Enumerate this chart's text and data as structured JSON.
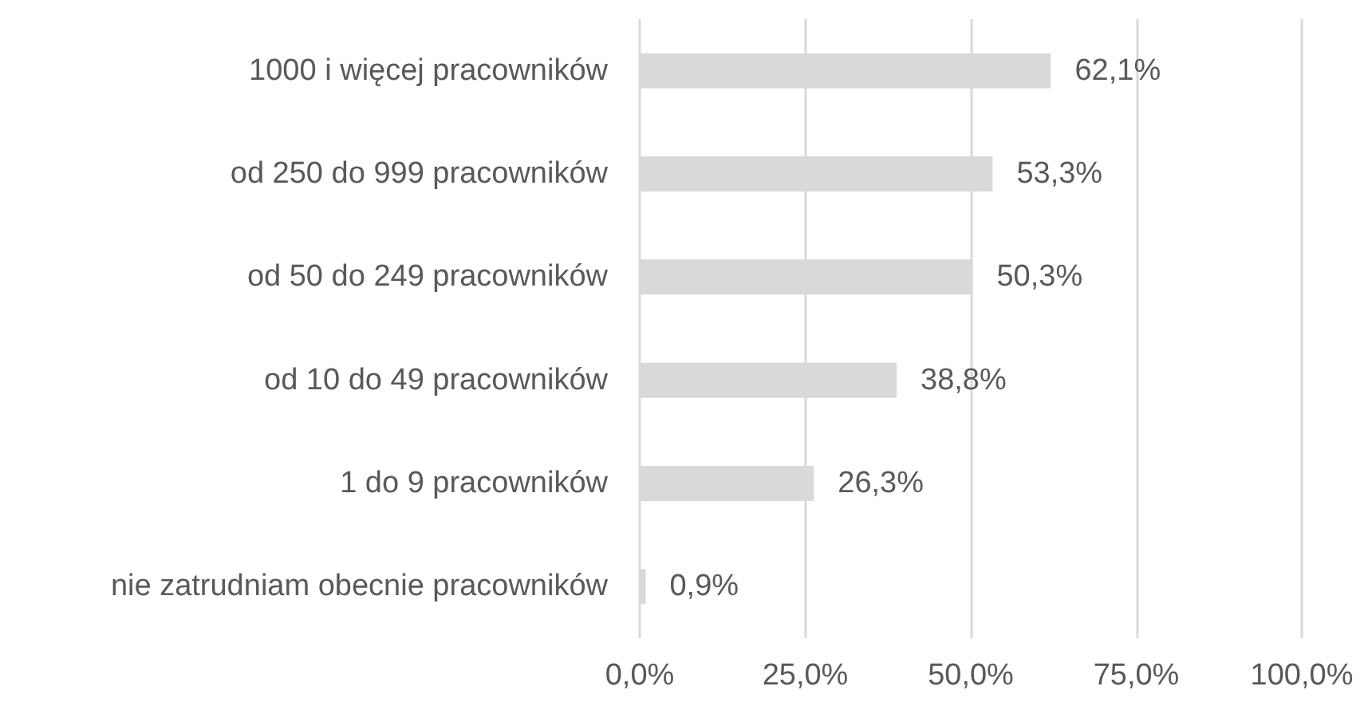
{
  "chart_data": {
    "type": "bar",
    "orientation": "horizontal",
    "categories": [
      "1000 i więcej pracowników",
      "od 250 do 999 pracowników",
      "od 50 do 249 pracowników",
      "od 10 do 49 pracowników",
      "1 do 9 pracowników",
      "nie zatrudniam obecnie pracowników"
    ],
    "values": [
      62.1,
      53.3,
      50.3,
      38.8,
      26.3,
      0.9
    ],
    "color": "#d9d9d9",
    "value_labels": [
      "62,1%",
      "53,3%",
      "50,3%",
      "38,8%",
      "26,3%",
      "0,9%"
    ],
    "xlim": [
      0,
      100
    ],
    "xticks": [
      {
        "value": 0,
        "label": "0,0%"
      },
      {
        "value": 25,
        "label": "25,0%"
      },
      {
        "value": 50,
        "label": "50,0%"
      },
      {
        "value": 75,
        "label": "75,0%"
      },
      {
        "value": 100,
        "label": "100,0%"
      }
    ],
    "grid": "x"
  }
}
